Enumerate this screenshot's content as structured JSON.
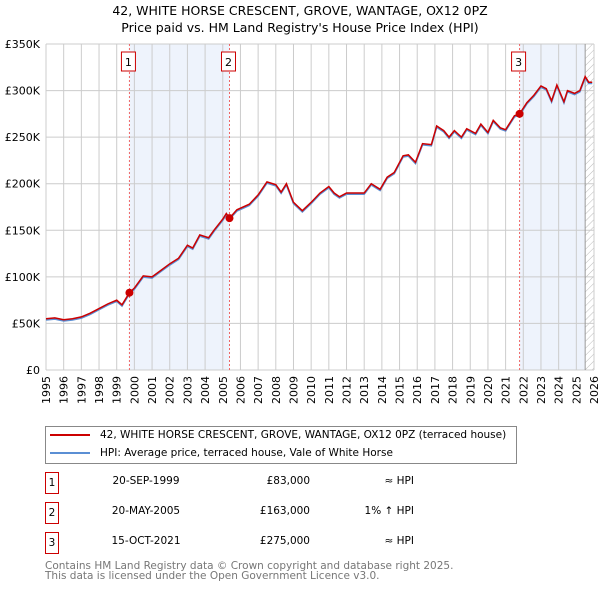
{
  "chart_data": {
    "type": "line",
    "title": "42, WHITE HORSE CRESCENT, GROVE, WANTAGE, OX12 0PZ",
    "subtitle": "Price paid vs. HM Land Registry's House Price Index (HPI)",
    "xlim": [
      1995,
      2026
    ],
    "ylim": [
      0,
      350000
    ],
    "y_ticks": [
      {
        "v": 0,
        "label": "£0"
      },
      {
        "v": 50000,
        "label": "£50K"
      },
      {
        "v": 100000,
        "label": "£100K"
      },
      {
        "v": 150000,
        "label": "£150K"
      },
      {
        "v": 200000,
        "label": "£200K"
      },
      {
        "v": 250000,
        "label": "£250K"
      },
      {
        "v": 300000,
        "label": "£300K"
      },
      {
        "v": 350000,
        "label": "£350K"
      }
    ],
    "x_ticks": [
      "1995",
      "1996",
      "1997",
      "1998",
      "1999",
      "2000",
      "2001",
      "2002",
      "2003",
      "2004",
      "2005",
      "2006",
      "2007",
      "2008",
      "2009",
      "2010",
      "2011",
      "2012",
      "2013",
      "2014",
      "2015",
      "2016",
      "2017",
      "2018",
      "2019",
      "2020",
      "2021",
      "2022",
      "2023",
      "2024",
      "2025",
      "2026"
    ],
    "grid": true,
    "data_end": 2025.5,
    "series": [
      {
        "name": "42, WHITE HORSE CRESCENT, GROVE, WANTAGE, OX12 0PZ (terraced house)",
        "color": "#cc0000"
      },
      {
        "name": "HPI: Average price, terraced house, Vale of White Horse",
        "color": "#5b8fd4"
      }
    ],
    "hpi_points": [
      [
        1995,
        55
      ],
      [
        1995.5,
        56
      ],
      [
        1996,
        54
      ],
      [
        1996.5,
        55
      ],
      [
        1997,
        57
      ],
      [
        1997.5,
        61
      ],
      [
        1998,
        66
      ],
      [
        1998.5,
        71
      ],
      [
        1999,
        75
      ],
      [
        1999.3,
        70
      ],
      [
        1999.72,
        83
      ],
      [
        2000,
        88
      ],
      [
        2000.5,
        101
      ],
      [
        2001,
        100
      ],
      [
        2001.5,
        107
      ],
      [
        2002,
        114
      ],
      [
        2002.5,
        120
      ],
      [
        2003,
        134
      ],
      [
        2003.3,
        131
      ],
      [
        2003.7,
        145
      ],
      [
        2004.2,
        142
      ],
      [
        2004.5,
        150
      ],
      [
        2005,
        162
      ],
      [
        2005.2,
        168
      ],
      [
        2005.38,
        163
      ],
      [
        2005.8,
        172
      ],
      [
        2006.5,
        178
      ],
      [
        2007,
        188
      ],
      [
        2007.5,
        202
      ],
      [
        2008,
        199
      ],
      [
        2008.3,
        191
      ],
      [
        2008.6,
        200
      ],
      [
        2009,
        180
      ],
      [
        2009.5,
        171
      ],
      [
        2010,
        180
      ],
      [
        2010.5,
        190
      ],
      [
        2011,
        197
      ],
      [
        2011.3,
        190
      ],
      [
        2011.6,
        186
      ],
      [
        2012,
        190
      ],
      [
        2013,
        190
      ],
      [
        2013.4,
        200
      ],
      [
        2013.9,
        194
      ],
      [
        2014.3,
        207
      ],
      [
        2014.7,
        212
      ],
      [
        2015.2,
        230
      ],
      [
        2015.5,
        231
      ],
      [
        2015.9,
        223
      ],
      [
        2016.3,
        243
      ],
      [
        2016.8,
        242
      ],
      [
        2017.1,
        262
      ],
      [
        2017.5,
        257
      ],
      [
        2017.8,
        250
      ],
      [
        2018.1,
        257
      ],
      [
        2018.5,
        250
      ],
      [
        2018.8,
        259
      ],
      [
        2019.3,
        254
      ],
      [
        2019.6,
        264
      ],
      [
        2020,
        255
      ],
      [
        2020.3,
        268
      ],
      [
        2020.7,
        260
      ],
      [
        2021,
        258
      ],
      [
        2021.5,
        273
      ],
      [
        2021.79,
        275
      ],
      [
        2022.2,
        287
      ],
      [
        2022.6,
        295
      ],
      [
        2023,
        305
      ],
      [
        2023.3,
        302
      ],
      [
        2023.6,
        289
      ],
      [
        2023.9,
        306
      ],
      [
        2024.3,
        288
      ],
      [
        2024.5,
        300
      ],
      [
        2024.9,
        297
      ],
      [
        2025.2,
        300
      ],
      [
        2025.5,
        315
      ],
      [
        2025.7,
        309
      ],
      [
        2025.9,
        309
      ]
    ],
    "sales": [
      {
        "n": "1",
        "x": 1999.72,
        "price": 83000,
        "date": "20-SEP-1999",
        "price_label": "£83,000",
        "hpi": "≈ HPI"
      },
      {
        "n": "2",
        "x": 2005.38,
        "price": 163000,
        "date": "20-MAY-2005",
        "price_label": "£163,000",
        "hpi": "1% ↑ HPI"
      },
      {
        "n": "3",
        "x": 2021.79,
        "price": 275000,
        "date": "15-OCT-2021",
        "price_label": "£275,000",
        "hpi": "≈ HPI"
      }
    ]
  },
  "footer": [
    "Contains HM Land Registry data © Crown copyright and database right 2025.",
    "This data is licensed under the Open Government Licence v3.0."
  ]
}
